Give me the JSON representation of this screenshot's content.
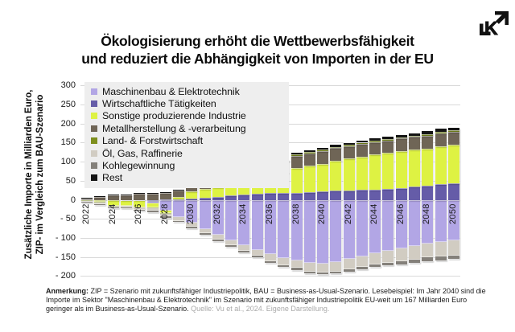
{
  "logo": {
    "letter": "K"
  },
  "title": {
    "line1": "Ökologisierung erhöht die Wettbewerbsfähigkeit",
    "line2": "und reduziert die Abhängigkeit von Importen in der EU"
  },
  "note": {
    "label": "Anmerkung:",
    "body": " ZIP = Szenario mit zukunftsfähiger Industriepolitik, BAU = Business-as-Usual-Szenario. Lesebeispiel: Im Jahr 2040 sind die Importe im Sektor \"Maschinenbau & Elektrotechnik\" im Szenario mit zukunftsfähiger Industriepolitik EU-weit um 167 Milliarden Euro geringer als im Business-as-Usual-Szenario. ",
    "source": "Quelle: Vu et al., 2024. Eigene Darstellung."
  },
  "chart_data": {
    "type": "bar",
    "stacked": true,
    "title": "Ökologisierung erhöht die Wettbewerbsfähigkeit und reduziert die Abhängigkeit von Importen in der EU",
    "ylabel_line1": "Zusätzliche Importe in Milliarden Euro,",
    "ylabel_line2": "ZIP- im Vergleich zum BAU-Szenario",
    "ylim": [
      -200,
      300
    ],
    "grid": true,
    "legend_position": "top-left-inside",
    "ytick_values": [
      300,
      250,
      200,
      150,
      100,
      50,
      0,
      -50,
      -100,
      -150,
      -200
    ],
    "ytick_labels": [
      "300",
      "250",
      "200",
      "150",
      "100",
      "50",
      "0",
      "- 50",
      "- 100",
      "- 150",
      "- 200"
    ],
    "x": [
      2022,
      2023,
      2024,
      2025,
      2026,
      2027,
      2028,
      2029,
      2030,
      2031,
      2032,
      2033,
      2034,
      2035,
      2036,
      2037,
      2038,
      2039,
      2040,
      2041,
      2042,
      2043,
      2044,
      2045,
      2046,
      2047,
      2048,
      2049,
      2050
    ],
    "xtick_labels": [
      "2022",
      "2024",
      "2026",
      "2028",
      "2030",
      "2032",
      "2034",
      "2036",
      "2038",
      "2040",
      "2042",
      "2044",
      "2046",
      "2048",
      "2050"
    ],
    "series": [
      {
        "name": "Maschinenbau & Elektrotechnik",
        "color": "#b2a6e5",
        "values": [
          0,
          0,
          -1,
          -2,
          -3,
          -8,
          -27,
          -45,
          -60,
          -75,
          -90,
          -105,
          -118,
          -130,
          -142,
          -152,
          -158,
          -165,
          -167,
          -163,
          -155,
          -147,
          -140,
          -133,
          -127,
          -121,
          -115,
          -110,
          -105
        ]
      },
      {
        "name": "Wirtschaftliche Tätigkeiten",
        "color": "#655ca8",
        "values": [
          0,
          0,
          0,
          0,
          0,
          1,
          2,
          3,
          4,
          6,
          8,
          12,
          15,
          17,
          18,
          19,
          20,
          22,
          24,
          25,
          26,
          27,
          28,
          30,
          32,
          35,
          38,
          42,
          45
        ]
      },
      {
        "name": "Sonstige produzierende Industrie",
        "color": "#def243",
        "values": [
          -1,
          -5,
          -14,
          -12,
          -16,
          -12,
          -6,
          6,
          20,
          23,
          25,
          27,
          29,
          35,
          43,
          52,
          65,
          68,
          72,
          79,
          83,
          88,
          92,
          94,
          96,
          97,
          98,
          99,
          100
        ]
      },
      {
        "name": "Metallherstellung & -verarbeitung",
        "color": "#6f6556",
        "values": [
          4,
          8,
          13,
          13,
          16,
          16,
          18,
          17,
          17,
          16,
          15,
          18,
          22,
          25,
          28,
          30,
          32,
          33,
          33,
          33,
          33,
          33,
          33,
          33,
          34,
          34,
          34,
          34,
          34
        ]
      },
      {
        "name": "Land- & Forstwirtschaft",
        "color": "#7d8e1d",
        "values": [
          -1,
          -1,
          -1,
          -1,
          -1,
          -1,
          -2,
          0,
          1,
          1,
          1,
          2,
          2,
          2,
          2,
          3,
          3,
          3,
          3,
          3,
          3,
          3,
          3,
          3,
          3,
          3,
          4,
          4,
          4
        ]
      },
      {
        "name": "Öl, Gas, Raffinerie",
        "color": "#d1ccc2",
        "values": [
          -3,
          -4,
          -4,
          -5,
          -6,
          -7,
          -8,
          -9,
          -10,
          -12,
          -13,
          -14,
          -15,
          -16,
          -18,
          -19,
          -20,
          -22,
          -23,
          -24,
          -26,
          -28,
          -29,
          -31,
          -33,
          -35,
          -36,
          -38,
          -40
        ]
      },
      {
        "name": "Kohlegewinnung",
        "color": "#84807a",
        "values": [
          -1,
          -1,
          -2,
          -2,
          -2,
          -3,
          -3,
          -3,
          -3,
          -4,
          -4,
          -4,
          -4,
          -5,
          -5,
          -5,
          -5,
          -5,
          -5,
          -6,
          -6,
          -7,
          -7,
          -8,
          -8,
          -9,
          -9,
          -10,
          -10
        ]
      },
      {
        "name": "Rest",
        "color": "#141414",
        "values": [
          2,
          2,
          2,
          2,
          2,
          2,
          2,
          2,
          2,
          2,
          2,
          2,
          2,
          3,
          3,
          4,
          5,
          5,
          6,
          6,
          6,
          6,
          6,
          7,
          7,
          7,
          7,
          8,
          8
        ]
      }
    ]
  },
  "colors": {
    "grid": "#d9d9d9",
    "legend_bg": "#eeeeee",
    "note_source": "#a9a9a9",
    "text": "#0b0b0b"
  }
}
